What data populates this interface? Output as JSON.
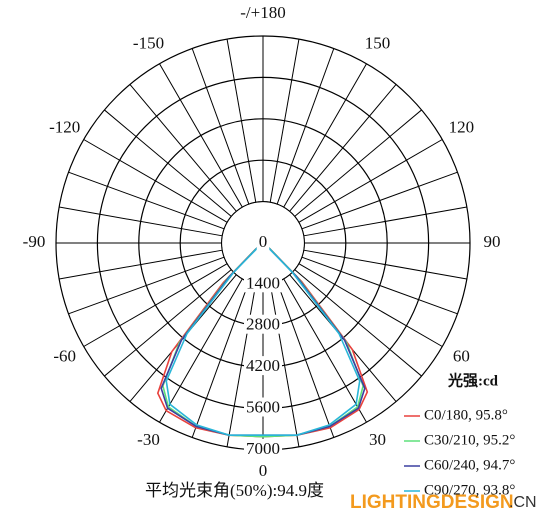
{
  "chart_data": {
    "type": "polar",
    "angles": [
      -60,
      -50,
      -45,
      -40,
      -35,
      -30,
      -20,
      -10,
      0,
      10,
      20,
      30,
      35,
      40,
      45,
      50,
      60
    ],
    "series": [
      {
        "name": "C0/180, 95.8°",
        "color": "#e8413c",
        "values": [
          0,
          350,
          1900,
          4800,
          6200,
          6550,
          6650,
          6600,
          6550,
          6600,
          6650,
          6500,
          6150,
          4700,
          1850,
          300,
          0
        ]
      },
      {
        "name": "C30/210, 95.2°",
        "color": "#5ee07a",
        "values": [
          0,
          300,
          1700,
          4400,
          5900,
          6400,
          6600,
          6600,
          6550,
          6600,
          6600,
          6400,
          5900,
          4400,
          1700,
          300,
          0
        ]
      },
      {
        "name": "C60/240, 94.7°",
        "color": "#3b3fa0",
        "values": [
          0,
          250,
          1600,
          4300,
          6000,
          6450,
          6600,
          6600,
          6500,
          6600,
          6600,
          6450,
          6000,
          4300,
          1600,
          250,
          0
        ]
      },
      {
        "name": "C90/270, 93.8°",
        "color": "#29b6d8",
        "values": [
          0,
          200,
          1400,
          4000,
          5700,
          6300,
          6550,
          6600,
          6500,
          6600,
          6550,
          6300,
          5700,
          4000,
          1400,
          200,
          0
        ]
      }
    ],
    "rlim": [
      0,
      7000
    ],
    "rticks": [
      0,
      1400,
      2800,
      4200,
      5600,
      7000
    ],
    "angle_ticks": [
      {
        "value": 180,
        "label": "-/+180"
      },
      -150,
      150,
      -120,
      120,
      -90,
      90,
      -60,
      60,
      -30,
      30,
      0
    ],
    "legend_title": "光强:cd",
    "footer": "平均光束角(50%):94.9度",
    "watermark": [
      "LIGHTINGDESIGN",
      ".CN"
    ]
  }
}
